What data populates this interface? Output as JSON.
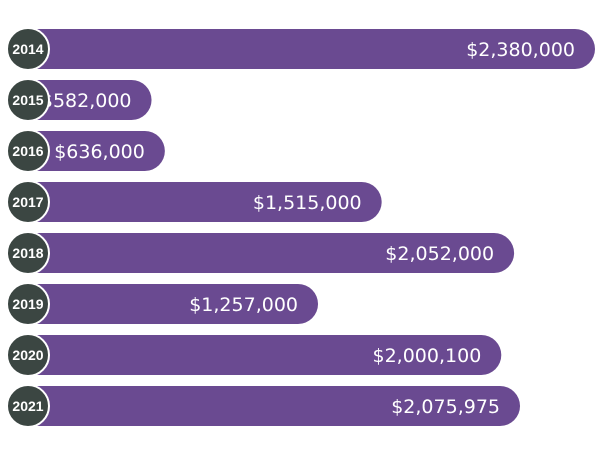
{
  "chart_data": {
    "type": "bar",
    "orientation": "horizontal",
    "title": "",
    "xlabel": "",
    "ylabel": "",
    "grid": false,
    "legend": "none",
    "categories": [
      "2014",
      "2015",
      "2016",
      "2017",
      "2018",
      "2019",
      "2020",
      "2021"
    ],
    "values": [
      2380000,
      582000,
      636000,
      1515000,
      2052000,
      1257000,
      2000100,
      2075975
    ],
    "value_labels": [
      "$2,380,000",
      "$582,000",
      "$636,000",
      "$1,515,000",
      "$2,052,000",
      "$1,257,000",
      "$2,000,100",
      "$2,075,975"
    ],
    "colors": {
      "bar": "#6a4a91",
      "badge": "#3b4642",
      "badge_border": "#ffffff",
      "text": "#ffffff"
    }
  }
}
